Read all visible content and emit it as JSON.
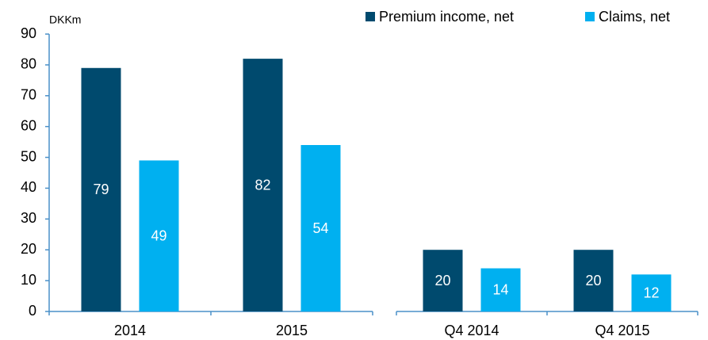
{
  "chart_data": {
    "type": "bar",
    "y_unit": "DKKm",
    "categories": [
      "2014",
      "2015",
      "Q4 2014",
      "Q4 2015"
    ],
    "series": [
      {
        "name": "Premium income, net",
        "color": "#004a6e",
        "values": [
          79,
          82,
          20,
          20
        ]
      },
      {
        "name": "Claims, net",
        "color": "#00b0f0",
        "values": [
          49,
          54,
          14,
          12
        ]
      }
    ],
    "ylim": [
      0,
      90
    ],
    "yticks": [
      0,
      10,
      20,
      30,
      40,
      50,
      60,
      70,
      80,
      90
    ],
    "legend": "top-right",
    "grid": false
  }
}
